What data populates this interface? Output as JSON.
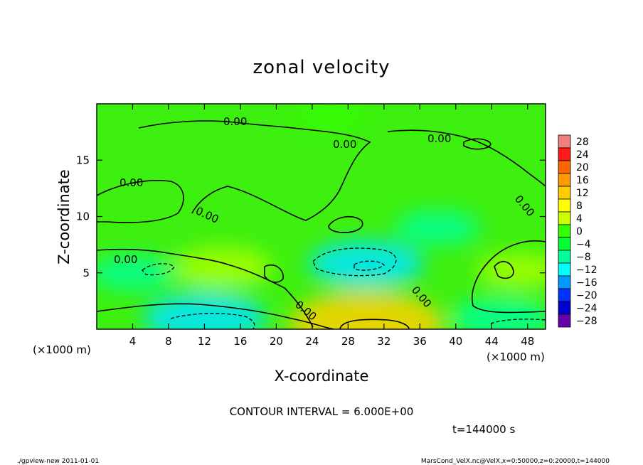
{
  "chart_data": {
    "type": "heatmap",
    "title": "zonal velocity",
    "xlabel": "X-coordinate",
    "ylabel": "Z-coordinate",
    "x_unit_label": "(×1000 m)",
    "y_unit_label": "(×1000 m)",
    "xlim": [
      0,
      50
    ],
    "ylim": [
      0,
      20
    ],
    "x_ticks": [
      4,
      8,
      12,
      16,
      20,
      24,
      28,
      32,
      36,
      40,
      44,
      48
    ],
    "y_ticks": [
      5,
      10,
      15
    ],
    "grid": false,
    "colorbar_levels": [
      "28",
      "24",
      "20",
      "16",
      "12",
      "8",
      "4",
      "0",
      "−4",
      "−8",
      "−12",
      "−16",
      "−20",
      "−24",
      "−28"
    ],
    "colorbar_colors": [
      "#f08080",
      "#ff1a1a",
      "#ff6600",
      "#ff9900",
      "#ffcc00",
      "#ffff00",
      "#ccff00",
      "#33ff00",
      "#00ff33",
      "#00ff99",
      "#00ffff",
      "#0099ff",
      "#0033ff",
      "#0000cc",
      "#6600aa"
    ],
    "contour_label": "0.00",
    "features": [
      {
        "x": 30,
        "z": 0.5,
        "u": 14
      },
      {
        "x": 14,
        "z": 5.5,
        "u": 7
      },
      {
        "x": 12,
        "z": 1.0,
        "u": -10
      },
      {
        "x": 45,
        "z": 1.0,
        "u": -7
      },
      {
        "x": 30,
        "z": 5.8,
        "u": -9
      },
      {
        "x": 4,
        "z": 5.0,
        "u": -5
      },
      {
        "x": 47,
        "z": 5.2,
        "u": 5
      },
      {
        "x": 26,
        "z": 19.0,
        "u": -3
      },
      {
        "x": 38,
        "z": 9.0,
        "u": -5
      }
    ],
    "annotations": {
      "contour_interval": "CONTOUR INTERVAL = 6.000E+00",
      "time": "t=144000 s"
    }
  },
  "footer": {
    "left": "./gpview-new  2011-01-01",
    "right": "MarsCond_VelX.nc@VelX,x=0:50000,z=0:20000,t=144000"
  }
}
